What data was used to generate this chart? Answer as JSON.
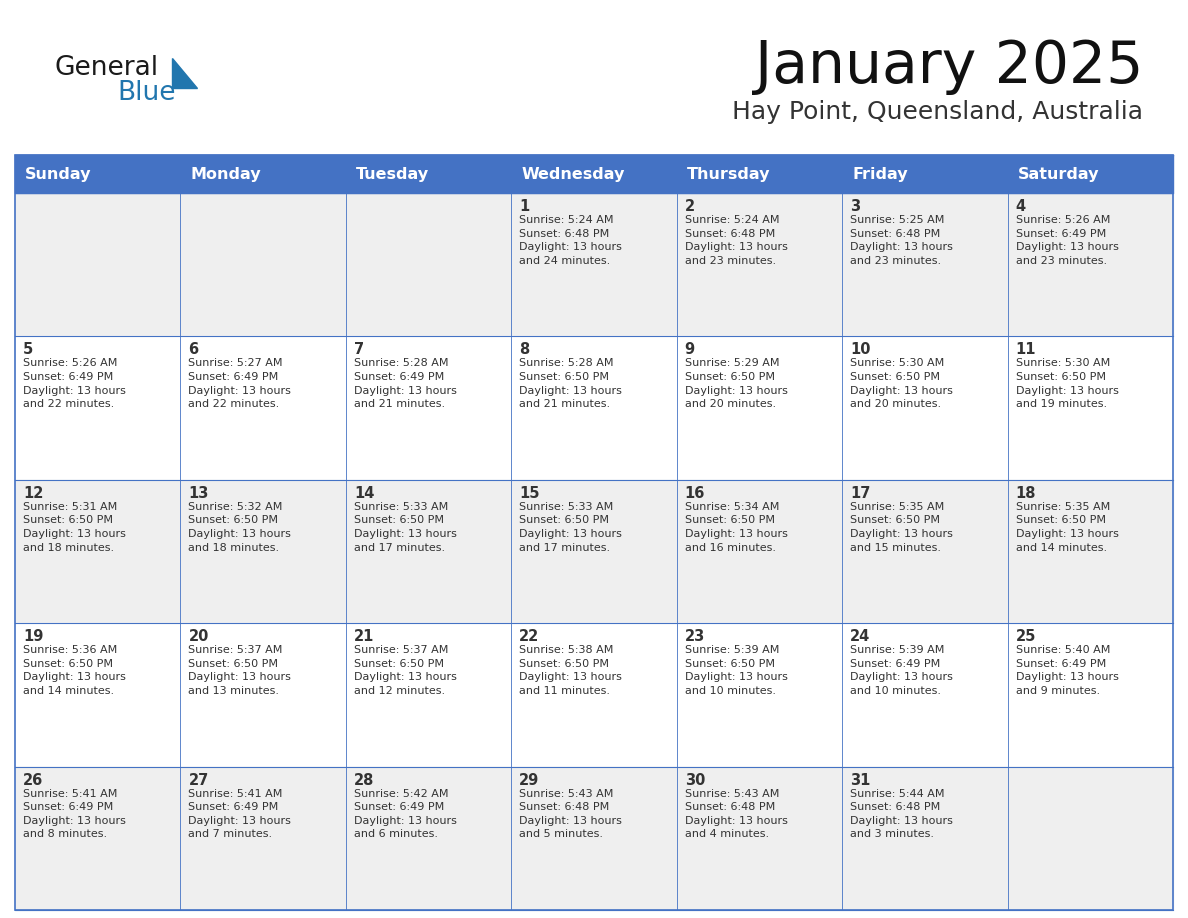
{
  "title": "January 2025",
  "subtitle": "Hay Point, Queensland, Australia",
  "header_bg_color": "#4472C4",
  "header_text_color": "#FFFFFF",
  "cell_bg_even": "#EFEFEF",
  "cell_bg_odd": "#FFFFFF",
  "border_color": "#4472C4",
  "text_color": "#333333",
  "day_headers": [
    "Sunday",
    "Monday",
    "Tuesday",
    "Wednesday",
    "Thursday",
    "Friday",
    "Saturday"
  ],
  "weeks": [
    [
      {
        "day": "",
        "info": ""
      },
      {
        "day": "",
        "info": ""
      },
      {
        "day": "",
        "info": ""
      },
      {
        "day": "1",
        "info": "Sunrise: 5:24 AM\nSunset: 6:48 PM\nDaylight: 13 hours\nand 24 minutes."
      },
      {
        "day": "2",
        "info": "Sunrise: 5:24 AM\nSunset: 6:48 PM\nDaylight: 13 hours\nand 23 minutes."
      },
      {
        "day": "3",
        "info": "Sunrise: 5:25 AM\nSunset: 6:48 PM\nDaylight: 13 hours\nand 23 minutes."
      },
      {
        "day": "4",
        "info": "Sunrise: 5:26 AM\nSunset: 6:49 PM\nDaylight: 13 hours\nand 23 minutes."
      }
    ],
    [
      {
        "day": "5",
        "info": "Sunrise: 5:26 AM\nSunset: 6:49 PM\nDaylight: 13 hours\nand 22 minutes."
      },
      {
        "day": "6",
        "info": "Sunrise: 5:27 AM\nSunset: 6:49 PM\nDaylight: 13 hours\nand 22 minutes."
      },
      {
        "day": "7",
        "info": "Sunrise: 5:28 AM\nSunset: 6:49 PM\nDaylight: 13 hours\nand 21 minutes."
      },
      {
        "day": "8",
        "info": "Sunrise: 5:28 AM\nSunset: 6:50 PM\nDaylight: 13 hours\nand 21 minutes."
      },
      {
        "day": "9",
        "info": "Sunrise: 5:29 AM\nSunset: 6:50 PM\nDaylight: 13 hours\nand 20 minutes."
      },
      {
        "day": "10",
        "info": "Sunrise: 5:30 AM\nSunset: 6:50 PM\nDaylight: 13 hours\nand 20 minutes."
      },
      {
        "day": "11",
        "info": "Sunrise: 5:30 AM\nSunset: 6:50 PM\nDaylight: 13 hours\nand 19 minutes."
      }
    ],
    [
      {
        "day": "12",
        "info": "Sunrise: 5:31 AM\nSunset: 6:50 PM\nDaylight: 13 hours\nand 18 minutes."
      },
      {
        "day": "13",
        "info": "Sunrise: 5:32 AM\nSunset: 6:50 PM\nDaylight: 13 hours\nand 18 minutes."
      },
      {
        "day": "14",
        "info": "Sunrise: 5:33 AM\nSunset: 6:50 PM\nDaylight: 13 hours\nand 17 minutes."
      },
      {
        "day": "15",
        "info": "Sunrise: 5:33 AM\nSunset: 6:50 PM\nDaylight: 13 hours\nand 17 minutes."
      },
      {
        "day": "16",
        "info": "Sunrise: 5:34 AM\nSunset: 6:50 PM\nDaylight: 13 hours\nand 16 minutes."
      },
      {
        "day": "17",
        "info": "Sunrise: 5:35 AM\nSunset: 6:50 PM\nDaylight: 13 hours\nand 15 minutes."
      },
      {
        "day": "18",
        "info": "Sunrise: 5:35 AM\nSunset: 6:50 PM\nDaylight: 13 hours\nand 14 minutes."
      }
    ],
    [
      {
        "day": "19",
        "info": "Sunrise: 5:36 AM\nSunset: 6:50 PM\nDaylight: 13 hours\nand 14 minutes."
      },
      {
        "day": "20",
        "info": "Sunrise: 5:37 AM\nSunset: 6:50 PM\nDaylight: 13 hours\nand 13 minutes."
      },
      {
        "day": "21",
        "info": "Sunrise: 5:37 AM\nSunset: 6:50 PM\nDaylight: 13 hours\nand 12 minutes."
      },
      {
        "day": "22",
        "info": "Sunrise: 5:38 AM\nSunset: 6:50 PM\nDaylight: 13 hours\nand 11 minutes."
      },
      {
        "day": "23",
        "info": "Sunrise: 5:39 AM\nSunset: 6:50 PM\nDaylight: 13 hours\nand 10 minutes."
      },
      {
        "day": "24",
        "info": "Sunrise: 5:39 AM\nSunset: 6:49 PM\nDaylight: 13 hours\nand 10 minutes."
      },
      {
        "day": "25",
        "info": "Sunrise: 5:40 AM\nSunset: 6:49 PM\nDaylight: 13 hours\nand 9 minutes."
      }
    ],
    [
      {
        "day": "26",
        "info": "Sunrise: 5:41 AM\nSunset: 6:49 PM\nDaylight: 13 hours\nand 8 minutes."
      },
      {
        "day": "27",
        "info": "Sunrise: 5:41 AM\nSunset: 6:49 PM\nDaylight: 13 hours\nand 7 minutes."
      },
      {
        "day": "28",
        "info": "Sunrise: 5:42 AM\nSunset: 6:49 PM\nDaylight: 13 hours\nand 6 minutes."
      },
      {
        "day": "29",
        "info": "Sunrise: 5:43 AM\nSunset: 6:48 PM\nDaylight: 13 hours\nand 5 minutes."
      },
      {
        "day": "30",
        "info": "Sunrise: 5:43 AM\nSunset: 6:48 PM\nDaylight: 13 hours\nand 4 minutes."
      },
      {
        "day": "31",
        "info": "Sunrise: 5:44 AM\nSunset: 6:48 PM\nDaylight: 13 hours\nand 3 minutes."
      },
      {
        "day": "",
        "info": ""
      }
    ]
  ],
  "logo_general_color": "#1a1a1a",
  "logo_blue_color": "#2176AE",
  "logo_triangle_color": "#2176AE",
  "figsize": [
    11.88,
    9.18
  ],
  "dpi": 100
}
